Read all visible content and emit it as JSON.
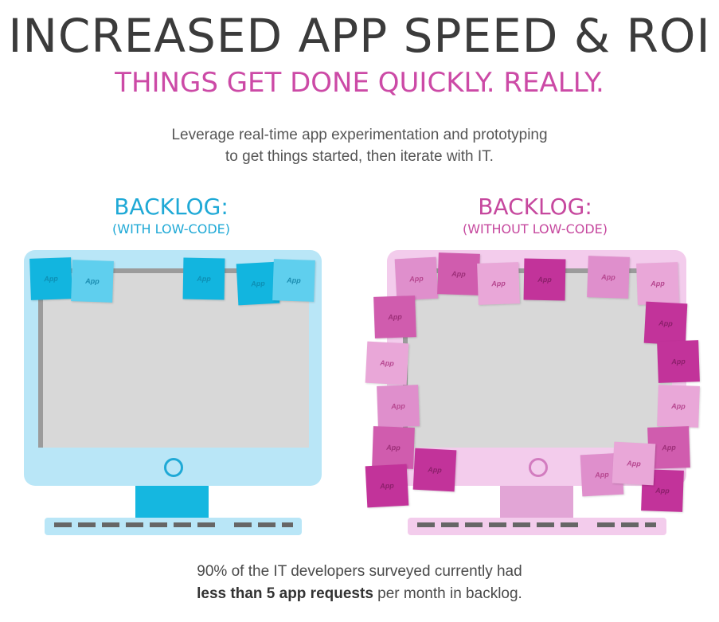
{
  "header": {
    "title": "INCREASED APP SPEED & ROI",
    "subtitle": "THINGS GET DONE QUICKLY. REALLY.",
    "intro_line1": "Leverage real-time app experimentation and prototyping",
    "intro_line2": "to get things started, then iterate with IT."
  },
  "left": {
    "title": "BACKLOG:",
    "subtitle": "(WITH LOW-CODE)",
    "note_label": "App"
  },
  "right": {
    "title": "BACKLOG:",
    "subtitle": "(WITHOUT LOW-CODE)",
    "note_label": "App"
  },
  "footer": {
    "line1": "90% of the IT developers surveyed currently had",
    "line2_bold": "less than 5 app requests",
    "line2_rest": " per month in backlog."
  },
  "colors": {
    "title": "#3b3b3b",
    "accent_pink": "#cc4aa6",
    "accent_blue": "#1fa9d6"
  }
}
